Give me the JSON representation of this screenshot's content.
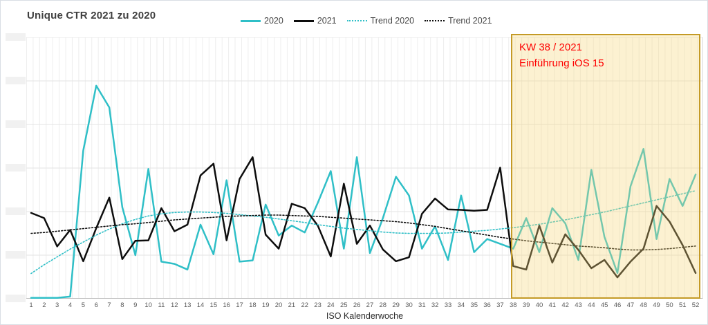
{
  "title": "Unique CTR 2021 zu 2020",
  "legend": {
    "items": [
      {
        "label": "2020",
        "style": "solid",
        "color": "#2fbfc7"
      },
      {
        "label": "2021",
        "style": "solid",
        "color": "#0d0d0d"
      },
      {
        "label": "Trend 2020",
        "style": "dotted",
        "color": "#2fbfc7"
      },
      {
        "label": "Trend 2021",
        "style": "dotted",
        "color": "#0d0d0d"
      }
    ]
  },
  "annotation": {
    "lines": [
      "KW 38 / 2021",
      "Einführung iOS 15"
    ],
    "color": "#fe0000"
  },
  "x_axis": {
    "title": "ISO Kalenderwoche"
  },
  "y_axis": {
    "tick_count": 7,
    "tick_labels": "redacted",
    "ylim": [
      0,
      6
    ]
  },
  "colors": {
    "series_2020": "#2fbfc7",
    "series_2021": "#0d0d0d",
    "highlight_fill": "rgba(246,214,122,0.35)",
    "highlight_border": "#c49a26",
    "grid_major": "#e3e3e3",
    "grid_minor": "#eeeeee",
    "axis_line": "#bfbfbf",
    "tick_text": "#595959"
  },
  "chart_data": {
    "type": "line",
    "x": [
      1,
      2,
      3,
      4,
      5,
      6,
      7,
      8,
      9,
      10,
      11,
      12,
      13,
      14,
      15,
      16,
      17,
      18,
      19,
      20,
      21,
      22,
      23,
      24,
      25,
      26,
      27,
      28,
      29,
      30,
      31,
      32,
      33,
      34,
      35,
      36,
      37,
      38,
      39,
      40,
      41,
      42,
      43,
      44,
      45,
      46,
      47,
      48,
      49,
      50,
      51,
      52
    ],
    "xlabel": "ISO Kalenderwoche",
    "ylabel": "",
    "ylim": [
      0,
      6
    ],
    "y_tick_labels_redacted": true,
    "grid": true,
    "legend_position": "top",
    "series": [
      {
        "name": "2020",
        "color": "#2fbfc7",
        "style": "solid",
        "values": [
          0.02,
          0.02,
          0.02,
          0.05,
          3.4,
          4.89,
          4.39,
          2.1,
          1.0,
          2.98,
          0.85,
          0.8,
          0.67,
          1.7,
          1.02,
          2.72,
          0.85,
          0.88,
          2.16,
          1.45,
          1.68,
          1.52,
          2.2,
          2.93,
          1.15,
          3.25,
          1.05,
          1.85,
          2.8,
          2.37,
          1.15,
          1.66,
          0.89,
          2.37,
          1.07,
          1.37,
          1.26,
          1.15,
          1.85,
          1.07,
          2.08,
          1.73,
          0.89,
          2.96,
          1.42,
          0.59,
          2.58,
          3.44,
          1.37,
          2.75,
          2.13,
          2.85
        ]
      },
      {
        "name": "2021",
        "color": "#0d0d0d",
        "style": "solid",
        "values": [
          1.97,
          1.85,
          1.2,
          1.58,
          0.86,
          1.62,
          2.32,
          0.91,
          1.33,
          1.34,
          2.08,
          1.55,
          1.7,
          2.83,
          3.1,
          1.34,
          2.75,
          3.25,
          1.47,
          1.15,
          2.18,
          2.08,
          1.68,
          0.97,
          2.64,
          1.26,
          1.68,
          1.13,
          0.86,
          0.95,
          1.95,
          2.3,
          2.05,
          2.04,
          2.02,
          2.04,
          3.01,
          0.75,
          0.67,
          1.68,
          0.83,
          1.48,
          1.12,
          0.7,
          0.89,
          0.49,
          0.85,
          1.15,
          2.13,
          1.77,
          1.23,
          0.59
        ]
      },
      {
        "name": "Trend 2020",
        "color": "#2fbfc7",
        "style": "dotted",
        "values": [
          0.58,
          0.78,
          0.96,
          1.14,
          1.3,
          1.46,
          1.6,
          1.72,
          1.82,
          1.9,
          1.95,
          1.98,
          1.99,
          1.99,
          1.98,
          1.96,
          1.93,
          1.9,
          1.87,
          1.83,
          1.79,
          1.75,
          1.7,
          1.66,
          1.62,
          1.59,
          1.56,
          1.53,
          1.51,
          1.5,
          1.5,
          1.5,
          1.51,
          1.53,
          1.55,
          1.57,
          1.6,
          1.63,
          1.67,
          1.71,
          1.76,
          1.81,
          1.87,
          1.93,
          1.99,
          2.06,
          2.13,
          2.2,
          2.27,
          2.34,
          2.41,
          2.48
        ]
      },
      {
        "name": "Trend 2021",
        "color": "#0d0d0d",
        "style": "dotted",
        "values": [
          1.5,
          1.52,
          1.55,
          1.58,
          1.61,
          1.64,
          1.67,
          1.7,
          1.72,
          1.75,
          1.78,
          1.81,
          1.83,
          1.85,
          1.87,
          1.89,
          1.9,
          1.91,
          1.92,
          1.92,
          1.91,
          1.9,
          1.89,
          1.87,
          1.85,
          1.83,
          1.81,
          1.79,
          1.77,
          1.74,
          1.7,
          1.66,
          1.61,
          1.56,
          1.51,
          1.46,
          1.41,
          1.37,
          1.33,
          1.3,
          1.27,
          1.24,
          1.21,
          1.19,
          1.17,
          1.14,
          1.12,
          1.12,
          1.13,
          1.15,
          1.18,
          1.21
        ]
      }
    ],
    "highlight_region": {
      "from_week": 38,
      "to_week": 52,
      "label": [
        "KW 38 / 2021",
        "Einführung iOS 15"
      ]
    },
    "title": "Unique CTR 2021 zu 2020"
  }
}
